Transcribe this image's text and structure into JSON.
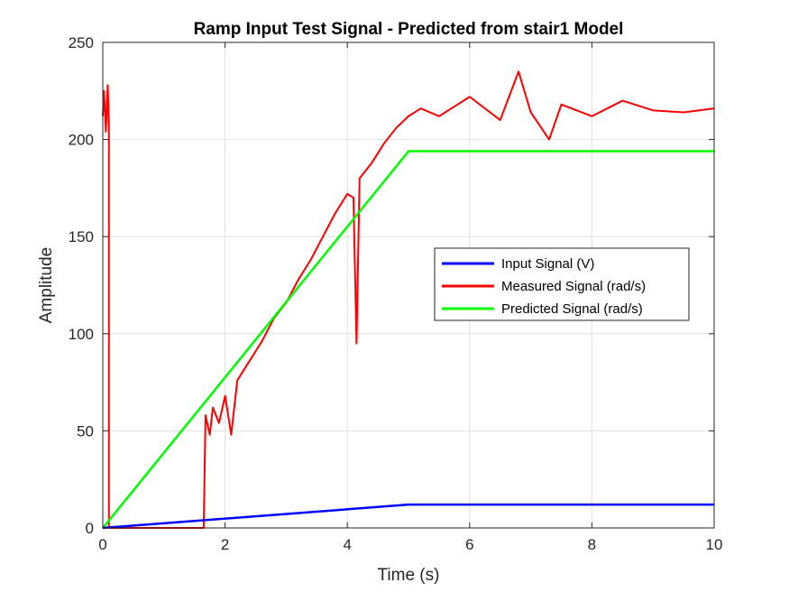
{
  "chart_data": {
    "type": "line",
    "title": "Ramp Input Test Signal - Predicted from stair1 Model",
    "xlabel": "Time (s)",
    "ylabel": "Amplitude",
    "xlim": [
      0,
      10
    ],
    "ylim": [
      0,
      250
    ],
    "xticks": [
      0,
      2,
      4,
      6,
      8,
      10
    ],
    "yticks": [
      0,
      50,
      100,
      150,
      200,
      250
    ],
    "grid": true,
    "legend_position": "right-middle",
    "series": [
      {
        "name": "Input Signal (V)",
        "color": "#0000ff",
        "x": [
          0,
          5,
          10
        ],
        "y": [
          0,
          12,
          12
        ]
      },
      {
        "name": "Measured Signal (rad/s)",
        "color": "#ff0000",
        "x": [
          0,
          0.02,
          0.05,
          0.08,
          0.1,
          0.1,
          1.65,
          1.68,
          1.75,
          1.8,
          1.9,
          2.0,
          2.1,
          2.2,
          2.4,
          2.6,
          2.8,
          3.0,
          3.2,
          3.4,
          3.6,
          3.8,
          4.0,
          4.1,
          4.15,
          4.2,
          4.4,
          4.6,
          4.8,
          5.0,
          5.2,
          5.5,
          6.0,
          6.5,
          6.8,
          7.0,
          7.3,
          7.5,
          8.0,
          8.5,
          9.0,
          9.5,
          10.0
        ],
        "y": [
          212,
          225,
          204,
          228,
          206,
          0,
          0,
          58,
          48,
          62,
          54,
          68,
          48,
          76,
          86,
          96,
          108,
          116,
          128,
          138,
          150,
          162,
          172,
          170,
          95,
          180,
          188,
          198,
          206,
          212,
          216,
          212,
          222,
          210,
          235,
          214,
          200,
          218,
          212,
          220,
          215,
          214,
          216
        ]
      },
      {
        "name": "Predicted Signal (rad/s)",
        "color": "#00ff00",
        "x": [
          0,
          5,
          10
        ],
        "y": [
          0,
          194,
          194
        ]
      }
    ]
  }
}
